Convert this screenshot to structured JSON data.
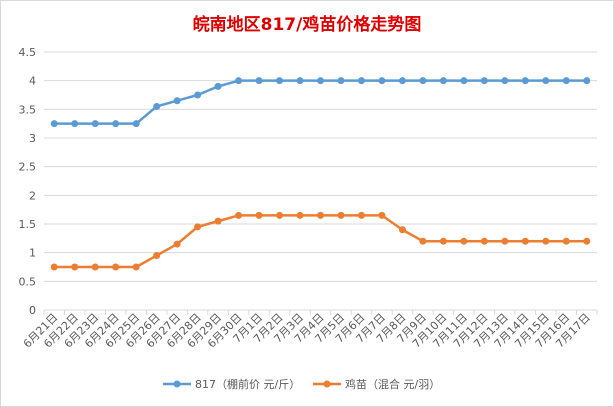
{
  "chart_data": {
    "type": "line",
    "title": "皖南地区817/鸡苗价格走势图",
    "title_color": "#e00000",
    "xlabel": "",
    "ylabel": "",
    "ylim": [
      0,
      4.5
    ],
    "ytick_step": 0.5,
    "y_ticks": [
      "0",
      "0.5",
      "1",
      "1.5",
      "2",
      "2.5",
      "3",
      "3.5",
      "4",
      "4.5"
    ],
    "grid": true,
    "legend_position": "bottom",
    "categories": [
      "6月21日",
      "6月22日",
      "6月23日",
      "6月24日",
      "6月25日",
      "6月26日",
      "6月27日",
      "6月28日",
      "6月29日",
      "6月30日",
      "7月1日",
      "7月2日",
      "7月3日",
      "7月4日",
      "7月5日",
      "7月6日",
      "7月7日",
      "7月8日",
      "7月9日",
      "7月10日",
      "7月11日",
      "7月12日",
      "7月13日",
      "7月14日",
      "7月15日",
      "7月16日",
      "7月17日"
    ],
    "series": [
      {
        "name": "817（棚前价 元/斤）",
        "color": "#5b9bd5",
        "values": [
          3.25,
          3.25,
          3.25,
          3.25,
          3.25,
          3.55,
          3.65,
          3.75,
          3.9,
          4.0,
          4.0,
          4.0,
          4.0,
          4.0,
          4.0,
          4.0,
          4.0,
          4.0,
          4.0,
          4.0,
          4.0,
          4.0,
          4.0,
          4.0,
          4.0,
          4.0,
          4.0
        ]
      },
      {
        "name": "鸡苗（混合 元/羽）",
        "color": "#ed7d31",
        "values": [
          0.75,
          0.75,
          0.75,
          0.75,
          0.75,
          0.95,
          1.15,
          1.45,
          1.55,
          1.65,
          1.65,
          1.65,
          1.65,
          1.65,
          1.65,
          1.65,
          1.65,
          1.4,
          1.2,
          1.2,
          1.2,
          1.2,
          1.2,
          1.2,
          1.2,
          1.2,
          1.2
        ]
      }
    ]
  }
}
